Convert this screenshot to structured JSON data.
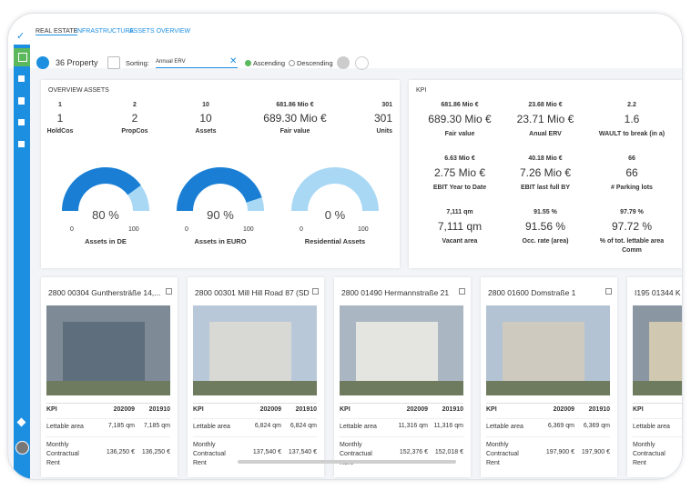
{
  "tabs": [
    "REAL ESTATE",
    "INFRASTRUCTURE",
    "ASSETS OVERVIEW"
  ],
  "toolbar": {
    "count": "36 Property",
    "sorting_label": "Sorting:",
    "sort_field": "Annual ERV",
    "ascending": "Ascending",
    "descending": "Descending"
  },
  "overview": {
    "title": "OVERVIEW ASSETS",
    "stats": [
      {
        "top": "1",
        "value": "1",
        "label": "HoldCos"
      },
      {
        "top": "2",
        "value": "2",
        "label": "PropCos"
      },
      {
        "top": "10",
        "value": "10",
        "label": "Assets"
      },
      {
        "top": "681.86 Mio €",
        "value": "689.30 Mio €",
        "label": "Fair value"
      },
      {
        "top": "301",
        "value": "301",
        "label": "Units"
      }
    ],
    "gauges": [
      {
        "value": 80,
        "value_label": "80 %",
        "min": 0,
        "max": 100,
        "label": "Assets in DE"
      },
      {
        "value": 90,
        "value_label": "90 %",
        "min": 0,
        "max": 100,
        "label": "Assets in EURO"
      },
      {
        "value": 0,
        "value_label": "0 %",
        "min": 0,
        "max": 100,
        "label": "Residential Assets"
      }
    ]
  },
  "kpi": {
    "title": "KPI",
    "items": [
      {
        "top": "681.86 Mio €",
        "value": "689.30 Mio €",
        "label": "Fair value"
      },
      {
        "top": "23.68 Mio €",
        "value": "23.71 Mio €",
        "label": "Anual ERV"
      },
      {
        "top": "2.2",
        "value": "1.6",
        "label": "WAULT to break (in a)"
      },
      {
        "top": "6.63 Mio €",
        "value": "2.75 Mio €",
        "label": "EBIT Year to Date"
      },
      {
        "top": "40.18 Mio €",
        "value": "7.26 Mio €",
        "label": "EBIT last full BY"
      },
      {
        "top": "66",
        "value": "66",
        "label": "# Parking lots"
      },
      {
        "top": "7,111 qm",
        "value": "7,111 qm",
        "label": "Vacant area"
      },
      {
        "top": "91.55 %",
        "value": "91.56 %",
        "label": "Occ. rate (area)"
      },
      {
        "top": "97.79 %",
        "value": "97.72 %",
        "label": "% of tot. lettable area Comm"
      }
    ]
  },
  "properties": [
    {
      "title": "2800 00304 Gunthersträße 14,...",
      "kpi": "KPI",
      "col1": "202009",
      "col2": "201910",
      "rows": [
        {
          "label": "Lettable area",
          "v1": "7,185 qm",
          "v2": "7,185 qm"
        },
        {
          "label": "Monthly Contractual Rent",
          "v1": "136,250 €",
          "v2": "136,250 €"
        }
      ]
    },
    {
      "title": "2800 00301 Mill Hill Road 87 (SD)",
      "kpi": "KPI",
      "col1": "202009",
      "col2": "201910",
      "rows": [
        {
          "label": "Lettable area",
          "v1": "6,824 qm",
          "v2": "6,824 qm"
        },
        {
          "label": "Monthly Contractual Rent",
          "v1": "137,540 €",
          "v2": "137,540 €"
        }
      ]
    },
    {
      "title": "2800 01490 Hermannstraße 21",
      "kpi": "KPI",
      "col1": "202009",
      "col2": "201910",
      "rows": [
        {
          "label": "Lettable area",
          "v1": "11,316 qm",
          "v2": "11,316 qm"
        },
        {
          "label": "Monthly Contractual Rent",
          "v1": "152,376 €",
          "v2": "152,018 €"
        }
      ]
    },
    {
      "title": "2800 01600 Domstraße 1",
      "kpi": "KPI",
      "col1": "202009",
      "col2": "201910",
      "rows": [
        {
          "label": "Lettable area",
          "v1": "6,369 qm",
          "v2": "6,369 qm"
        },
        {
          "label": "Monthly Contractual Rent",
          "v1": "197,900 €",
          "v2": "197,900 €"
        }
      ]
    },
    {
      "title": "I195 01344 K",
      "kpi": "KPI",
      "rows": [
        {
          "label": "Lettable area"
        },
        {
          "label": "Monthly Contractual Rent"
        }
      ]
    }
  ]
}
